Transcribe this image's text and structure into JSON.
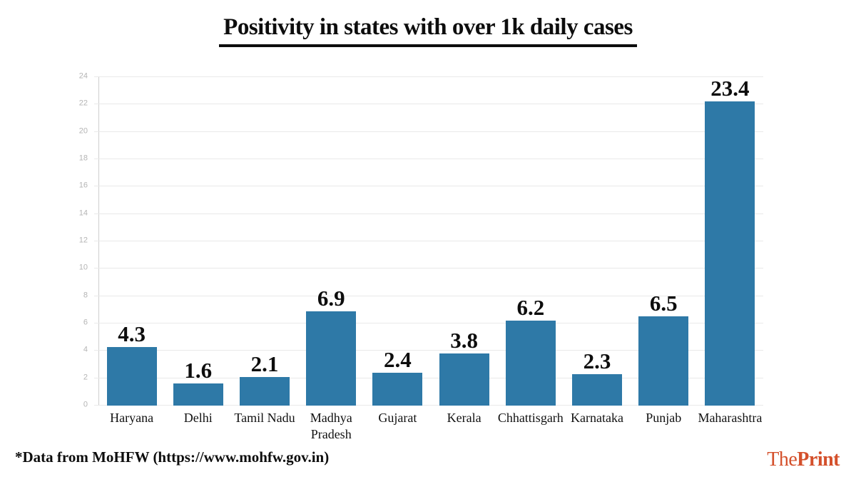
{
  "title": "Positivity in states with over 1k daily cases",
  "footer": {
    "source_note": "*Data from MoHFW (https://www.mohfw.gov.in)",
    "logo": {
      "regular": "The",
      "bold": "Print",
      "color": "#d4502b"
    }
  },
  "chart_data": {
    "type": "bar",
    "title": "Positivity in states with over 1k daily cases",
    "categories": [
      "Haryana",
      "Delhi",
      "Tamil Nadu",
      "Madhya Pradesh",
      "Gujarat",
      "Kerala",
      "Chhattisgarh",
      "Karnataka",
      "Punjab",
      "Maharashtra"
    ],
    "values": [
      4.3,
      1.6,
      2.1,
      6.9,
      2.4,
      3.8,
      6.2,
      2.3,
      6.5,
      23.4
    ],
    "value_labels": [
      "4.3",
      "1.6",
      "2.1",
      "6.9",
      "2.4",
      "3.8",
      "6.2",
      "2.3",
      "6.5",
      "23.4"
    ],
    "xlabel": "",
    "ylabel": "",
    "ylim": [
      0,
      24
    ],
    "ytick_step": 2,
    "ytick_labels": [
      "0",
      "2",
      "4",
      "6",
      "8",
      "10",
      "12",
      "14",
      "16",
      "18",
      "20",
      "22",
      "24"
    ],
    "grid": true,
    "legend": false,
    "bar_color": "#2e79a7",
    "grid_color": "#e9e9e9",
    "axis_color": "#cfcfcf",
    "tick_text_color": "#b4b4b4"
  }
}
